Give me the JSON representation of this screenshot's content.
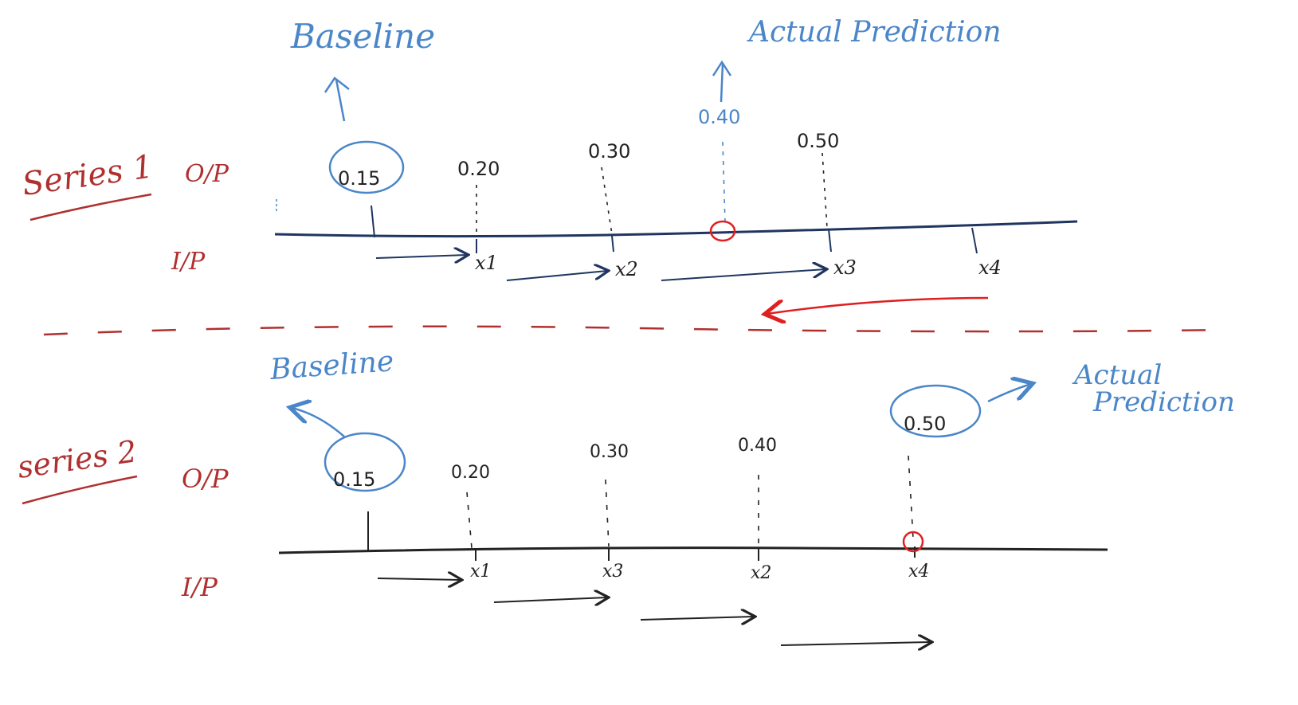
{
  "series1": {
    "label": "Series 1",
    "op_label": "O/P",
    "ip_label": "I/P",
    "baseline_label": "Baseline",
    "actual_label": "Actual Prediction",
    "outputs": [
      "0.15",
      "0.20",
      "0.30",
      "0.40",
      "0.50"
    ],
    "inputs": [
      "x1",
      "x2",
      "x3",
      "x4"
    ]
  },
  "series2": {
    "label": "series 2",
    "op_label": "O/P",
    "ip_label": "I/P",
    "baseline_label": "Baseline",
    "actual_label_line1": "Actual",
    "actual_label_line2": "Prediction",
    "outputs": [
      "0.15",
      "0.20",
      "0.30",
      "0.40",
      "0.50"
    ],
    "inputs": [
      "x1",
      "x3",
      "x2",
      "x4"
    ]
  },
  "colors": {
    "blue": "#4a86c8",
    "red": "#b03030",
    "bright_red": "#e02020",
    "navy": "#1f3560",
    "ink": "#222222"
  }
}
